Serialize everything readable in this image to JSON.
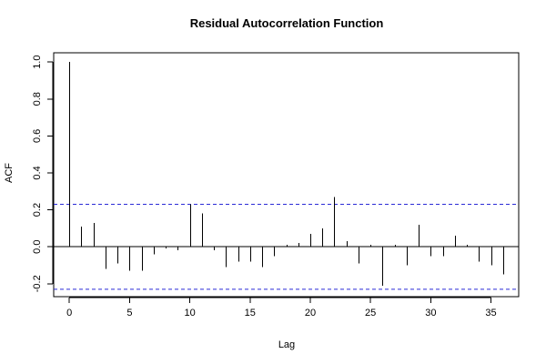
{
  "chart_data": {
    "type": "bar",
    "title": "Residual Autocorrelation Function",
    "xlabel": "Lag",
    "ylabel": "ACF",
    "xlim": [
      -1.3,
      37.3
    ],
    "ylim": [
      -0.27,
      1.05
    ],
    "xticks": [
      0,
      5,
      10,
      15,
      20,
      25,
      30,
      35
    ],
    "yticks": [
      -0.2,
      0.0,
      0.2,
      0.4,
      0.6,
      0.8,
      1.0
    ],
    "confidence_band": 0.23,
    "grid": false,
    "colors": {
      "bars": "#000000",
      "confidence": "#2b2bd6"
    },
    "lags": [
      0,
      1,
      2,
      3,
      4,
      5,
      6,
      7,
      8,
      9,
      10,
      11,
      12,
      13,
      14,
      15,
      16,
      17,
      18,
      19,
      20,
      21,
      22,
      23,
      24,
      25,
      26,
      27,
      28,
      29,
      30,
      31,
      32,
      33,
      34,
      35,
      36
    ],
    "values": [
      1.0,
      0.11,
      0.13,
      -0.12,
      -0.09,
      -0.13,
      -0.13,
      -0.04,
      -0.01,
      -0.02,
      0.23,
      0.18,
      -0.02,
      -0.11,
      -0.08,
      -0.08,
      -0.11,
      -0.05,
      0.01,
      0.02,
      0.07,
      0.1,
      0.27,
      0.03,
      -0.09,
      0.01,
      -0.21,
      0.01,
      -0.1,
      0.12,
      -0.05,
      -0.05,
      0.06,
      0.01,
      -0.08,
      -0.1,
      -0.15
    ]
  }
}
